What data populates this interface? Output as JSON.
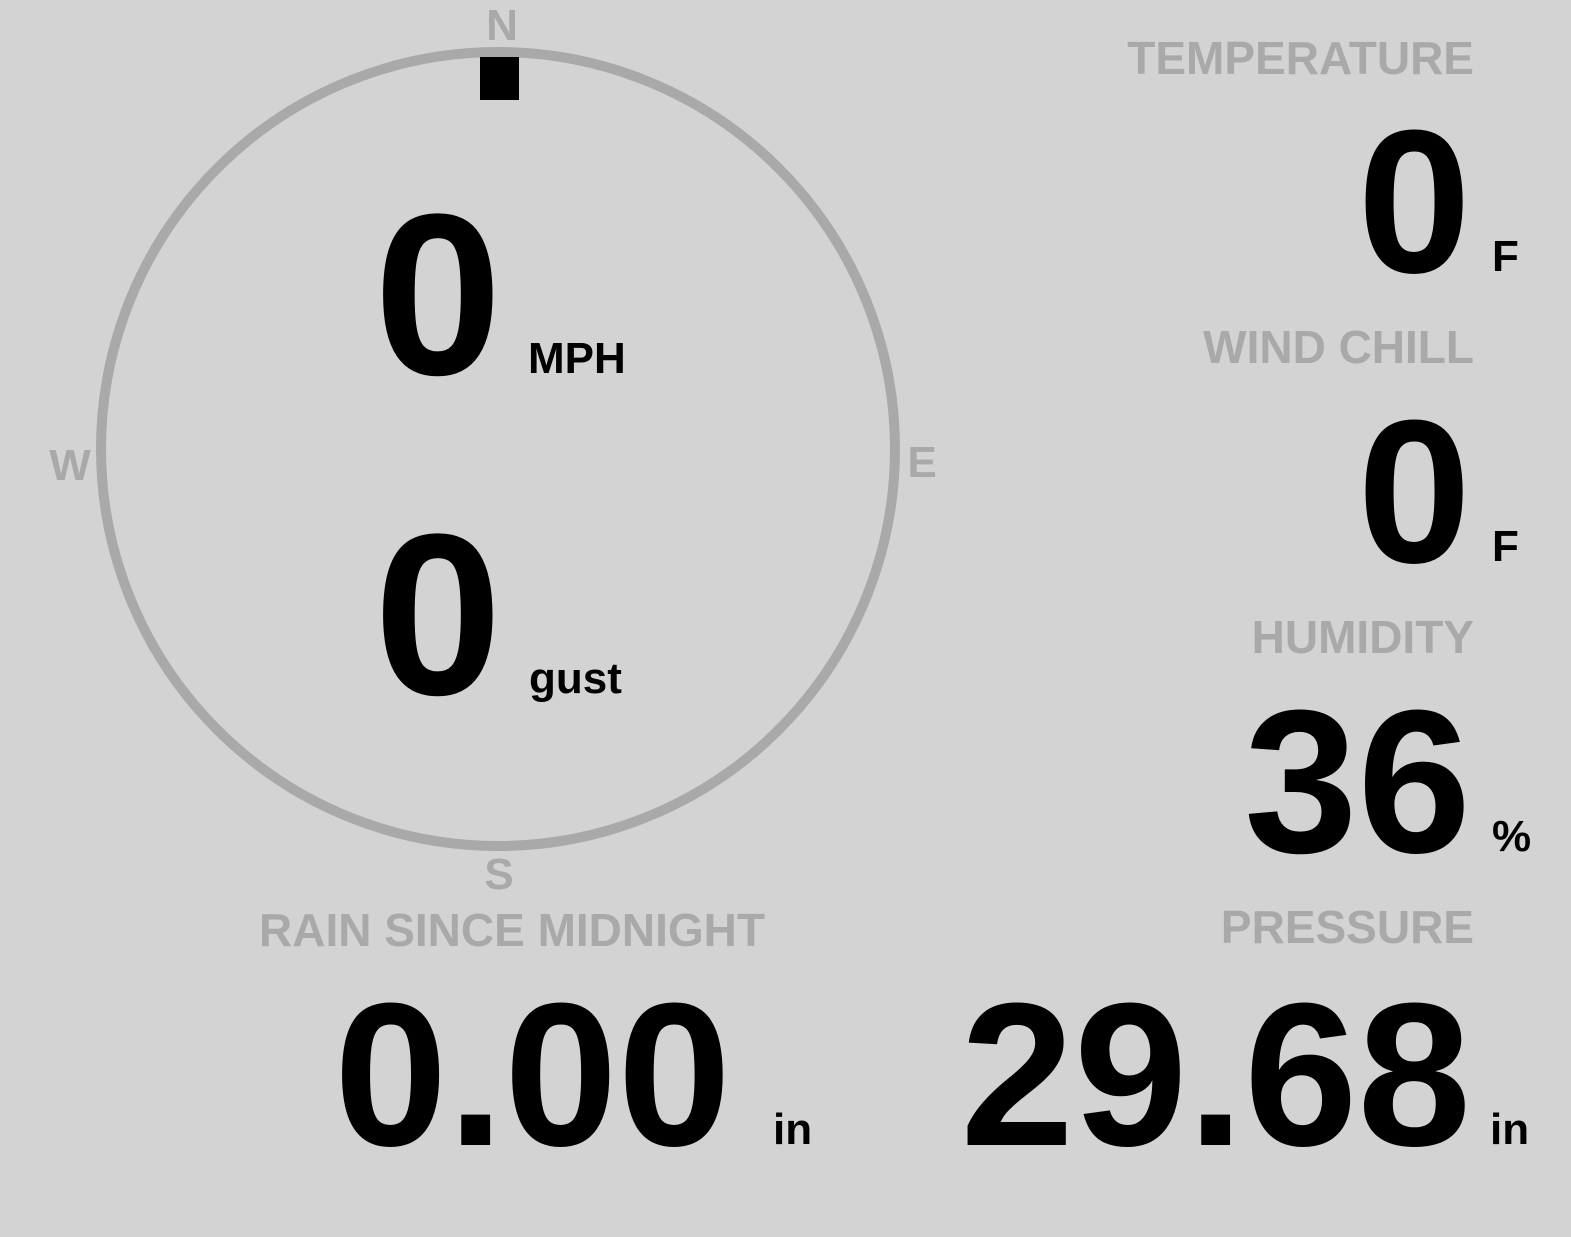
{
  "colors": {
    "background": "#d3d3d3",
    "label": "#a9a9a9",
    "value": "#000000",
    "compass_ring": "#a9a9a9",
    "wind_marker": "#000000"
  },
  "compass": {
    "directions": {
      "north": "N",
      "east": "E",
      "south": "S",
      "west": "W"
    },
    "wind_direction_degrees": 0,
    "wind_speed": {
      "value": "0",
      "unit": "MPH"
    },
    "gust": {
      "value": "0",
      "unit": "gust"
    }
  },
  "temperature": {
    "label": "TEMPERATURE",
    "value": "0",
    "unit": "F"
  },
  "wind_chill": {
    "label": "WIND CHILL",
    "value": "0",
    "unit": "F"
  },
  "humidity": {
    "label": "HUMIDITY",
    "value": "36",
    "unit": "%"
  },
  "rain": {
    "label": "RAIN SINCE MIDNIGHT",
    "value": "0.00",
    "unit": "in"
  },
  "pressure": {
    "label": "PRESSURE",
    "value": "29.68",
    "unit": "in"
  }
}
